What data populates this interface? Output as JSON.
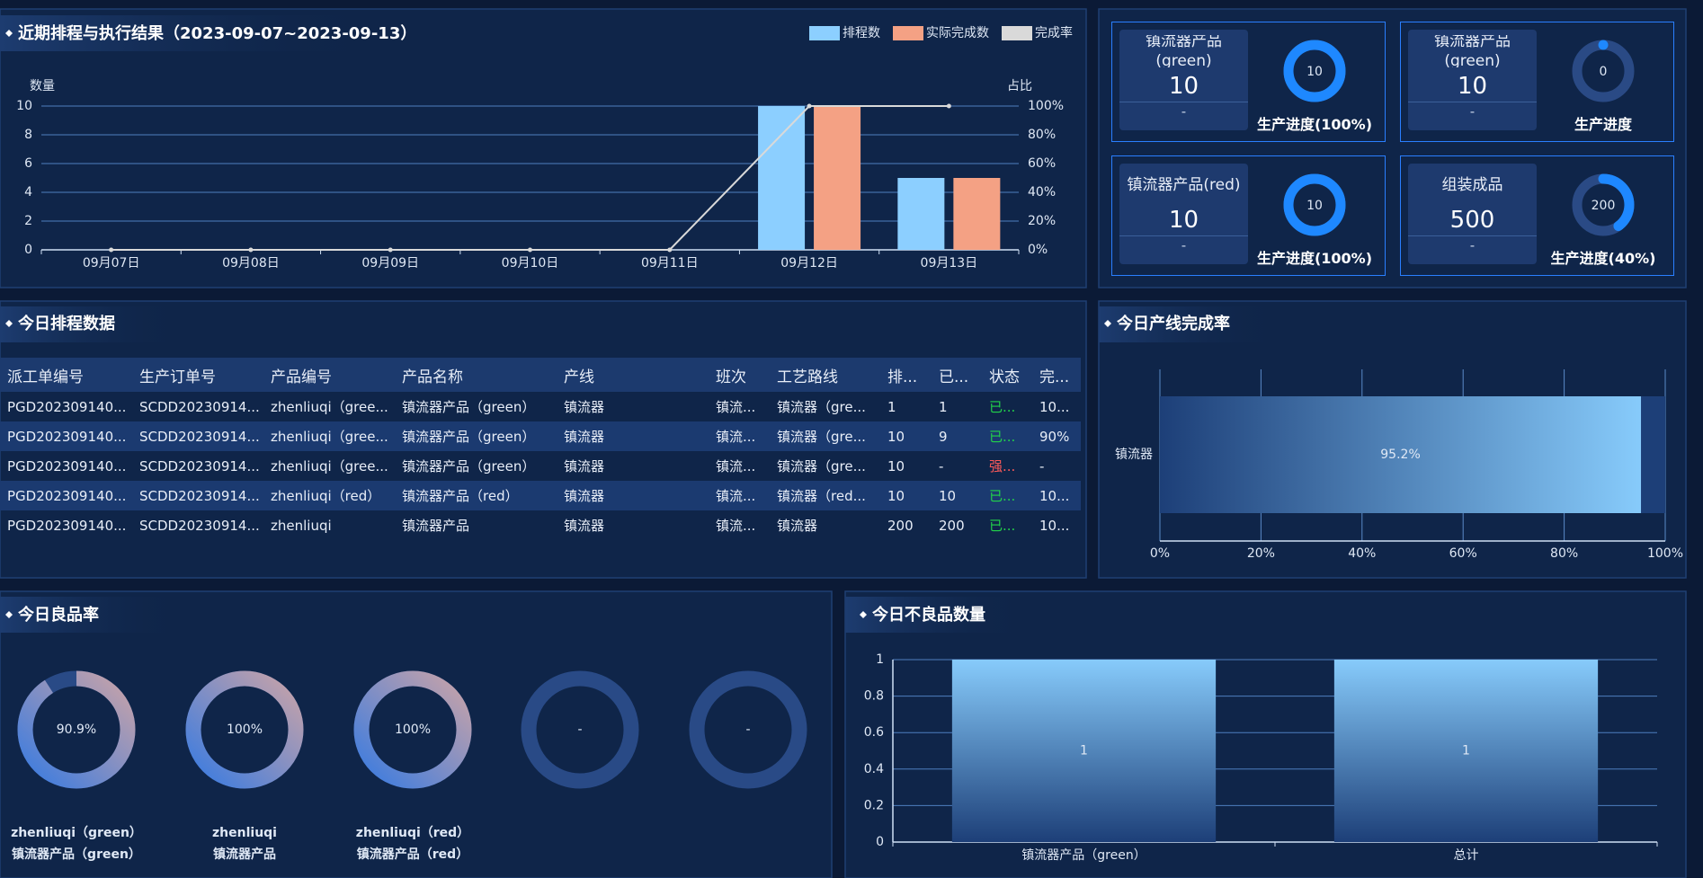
{
  "chart_data": [
    {
      "type": "bar",
      "title": "近期排程与执行结果（2023-09-07~2023-09-13）",
      "y_label": "数量",
      "y2_label": "占比",
      "categories": [
        "09月07日",
        "09月08日",
        "09月09日",
        "09月10日",
        "09月11日",
        "09月12日",
        "09月13日"
      ],
      "series": [
        {
          "name": "排程数",
          "color": "#8ccfff",
          "values": [
            0,
            0,
            0,
            0,
            0,
            10,
            5
          ]
        },
        {
          "name": "实际完成数",
          "color": "#f4a184",
          "values": [
            0,
            0,
            0,
            0,
            0,
            10,
            5
          ]
        },
        {
          "name": "完成率",
          "type": "line",
          "axis": "y2",
          "color": "#d9d9d9",
          "values": [
            0,
            0,
            0,
            0,
            0,
            100,
            100
          ]
        }
      ],
      "ylim": [
        0,
        10
      ],
      "yticks": [
        0,
        2,
        4,
        6,
        8,
        10
      ],
      "y2lim": [
        0,
        100
      ],
      "y2ticks": [
        {
          "value": 0,
          "label": "0%"
        },
        {
          "value": 20,
          "label": "20%"
        },
        {
          "value": 40,
          "label": "40%"
        },
        {
          "value": 60,
          "label": "60%"
        },
        {
          "value": 80,
          "label": "80%"
        },
        {
          "value": 100,
          "label": "100%"
        }
      ],
      "grid": true,
      "legend": "top-right"
    },
    {
      "type": "hbar",
      "title": "今日产线完成率",
      "categories": [
        "镇流器"
      ],
      "values": [
        95.2
      ],
      "value_labels": [
        "95.2%"
      ],
      "color": "#87cbfb",
      "xlim": [
        0,
        100
      ],
      "xticks": [
        {
          "value": 0,
          "label": "0%"
        },
        {
          "value": 20,
          "label": "20%"
        },
        {
          "value": 40,
          "label": "40%"
        },
        {
          "value": 60,
          "label": "60%"
        },
        {
          "value": 80,
          "label": "80%"
        },
        {
          "value": 100,
          "label": "100%"
        }
      ],
      "grid": true
    },
    {
      "type": "donut",
      "title": "今日良品率",
      "categories": [
        "zhenliuqi（green）",
        "zhenliuqi",
        "zhenliuqi（red）",
        null,
        null
      ],
      "subcategories": [
        "镇流器产品（green）",
        "镇流器产品",
        "镇流器产品（red）",
        null,
        null
      ],
      "values": [
        90.9,
        100,
        100,
        null,
        null
      ],
      "value_labels": [
        "90.9%",
        "100%",
        "100%",
        "-",
        "-"
      ],
      "ylim": [
        0,
        100
      ]
    },
    {
      "type": "bar",
      "title": "今日不良品数量",
      "categories": [
        "镇流器产品（green）",
        "总计"
      ],
      "values": [
        1,
        1
      ],
      "color": "#87cbfb",
      "ylim": [
        0,
        1
      ],
      "yticks": [
        0,
        0.2,
        0.4,
        0.6,
        0.8,
        1
      ],
      "grid": true
    }
  ],
  "cards": [
    {
      "name": "镇流器产品(green)",
      "plan": 10,
      "sub": "-",
      "done": 10,
      "progress": 100,
      "caption": "生产进度(100%)"
    },
    {
      "name": "镇流器产品(green)",
      "plan": 10,
      "sub": "-",
      "done": 0,
      "progress": 0,
      "caption": "生产进度"
    },
    {
      "name": "镇流器产品(red)",
      "plan": 10,
      "sub": "-",
      "done": 10,
      "progress": 100,
      "caption": "生产进度(100%)"
    },
    {
      "name": "组装成品",
      "plan": 500,
      "sub": "-",
      "done": 200,
      "progress": 40,
      "caption": "生产进度(40%)"
    }
  ],
  "table": {
    "title": "今日排程数据",
    "columns": [
      "派工单编号",
      "生产订单号",
      "产品编号",
      "产品名称",
      "产线",
      "班次",
      "工艺路线",
      "排...",
      "已...",
      "状态",
      "完..."
    ],
    "rows": [
      [
        "PGD202309140...",
        "SCDD20230914...",
        "zhenliuqi（gree...",
        "镇流器产品（green）",
        "镇流器",
        "镇流...",
        "镇流器（gre...",
        "1",
        "1",
        "已...",
        "10..."
      ],
      [
        "PGD202309140...",
        "SCDD20230914...",
        "zhenliuqi（gree...",
        "镇流器产品（green）",
        "镇流器",
        "镇流...",
        "镇流器（gre...",
        "10",
        "9",
        "已...",
        "90%"
      ],
      [
        "PGD202309140...",
        "SCDD20230914...",
        "zhenliuqi（gree...",
        "镇流器产品（green）",
        "镇流器",
        "镇流...",
        "镇流器（gre...",
        "10",
        "-",
        "强...",
        "-"
      ],
      [
        "PGD202309140...",
        "SCDD20230914...",
        "zhenliuqi（red）",
        "镇流器产品（red）",
        "镇流器",
        "镇流...",
        "镇流器（red...",
        "10",
        "10",
        "已...",
        "10..."
      ],
      [
        "PGD202309140...",
        "SCDD20230914...",
        "zhenliuqi",
        "镇流器产品",
        "镇流器",
        "镇流...",
        "镇流器",
        "200",
        "200",
        "已...",
        "10..."
      ]
    ],
    "status_colors": [
      "#22d34a",
      "#22d34a",
      "#ff5a5a",
      "#22d34a",
      "#22d34a"
    ]
  }
}
